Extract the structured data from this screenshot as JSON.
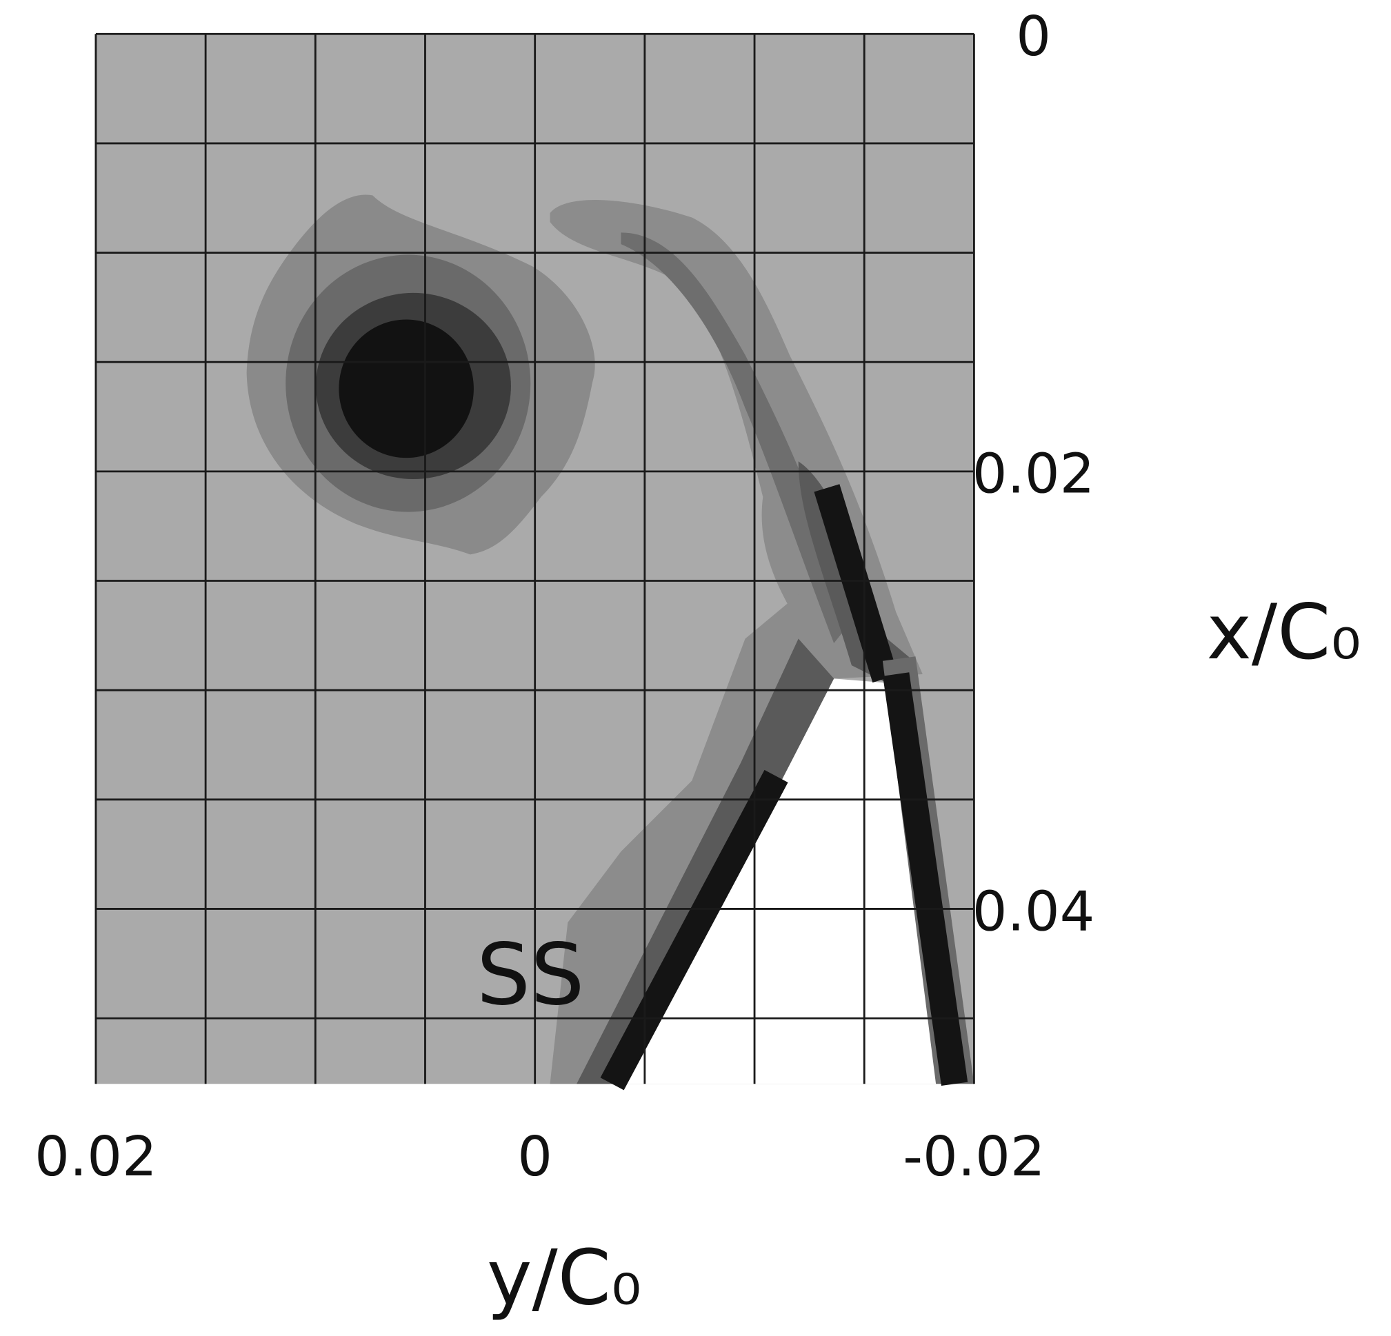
{
  "chart_data": {
    "type": "contour",
    "xlabel": "y/C₀",
    "ylabel": "x/C₀",
    "annotation": "SS",
    "xlim": [
      0.02,
      -0.02
    ],
    "ylim": [
      0,
      0.048
    ],
    "xticks": [
      0.02,
      0,
      -0.02
    ],
    "yticks": [
      0,
      0.02,
      0.04
    ],
    "grid": true,
    "xgrid": [
      0.02,
      0.015,
      0.01,
      0.005,
      0,
      -0.005,
      -0.01,
      -0.015,
      -0.02
    ],
    "ygrid": [
      0,
      0.005,
      0.01,
      0.015,
      0.02,
      0.025,
      0.03,
      0.035,
      0.04,
      0.045
    ],
    "grid_color": "#1a1a1a",
    "background_color": "#aaaaaa"
  }
}
